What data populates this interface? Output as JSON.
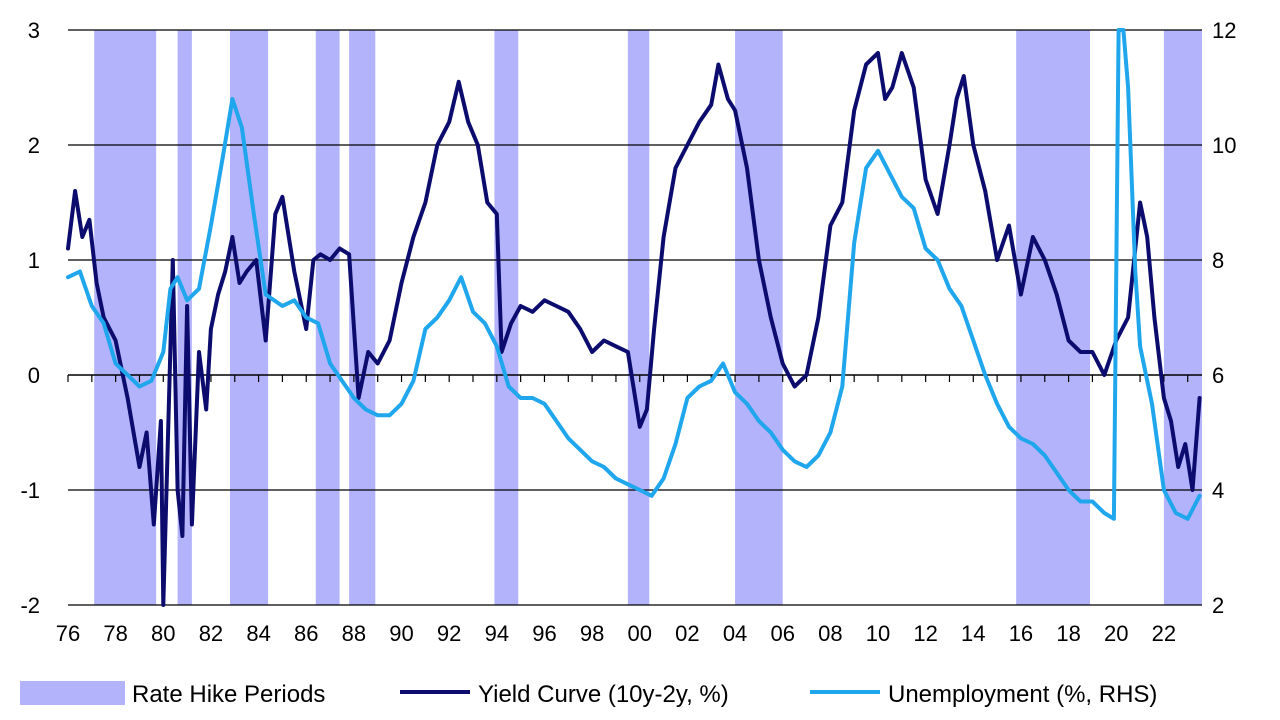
{
  "chart_data": {
    "type": "line",
    "title": "",
    "x_tick_labels": [
      "76",
      "78",
      "80",
      "82",
      "84",
      "86",
      "88",
      "90",
      "92",
      "94",
      "96",
      "98",
      "00",
      "02",
      "04",
      "06",
      "08",
      "10",
      "12",
      "14",
      "16",
      "18",
      "20",
      "22"
    ],
    "x_range": [
      1976,
      2023.6
    ],
    "y_left": {
      "range": [
        -2,
        3
      ],
      "ticks": [
        -2,
        -1,
        0,
        1,
        2,
        3
      ]
    },
    "y_right": {
      "range": [
        2,
        12
      ],
      "ticks": [
        2,
        4,
        6,
        8,
        10,
        12
      ]
    },
    "grid": "horizontal",
    "legend_position": "bottom",
    "colors": {
      "hike": "#b3b3fb",
      "yield": "#0c0c6e",
      "unemployment": "#1fa6ec"
    },
    "legend": {
      "hike": "Rate Hike Periods",
      "yield": "Yield Curve (10y-2y, %)",
      "unemployment": "Unemployment (%, RHS)"
    },
    "rate_hike_periods": [
      [
        1977.1,
        1979.7
      ],
      [
        1980.6,
        1981.2
      ],
      [
        1982.8,
        1984.4
      ],
      [
        1986.4,
        1987.4
      ],
      [
        1987.8,
        1988.9
      ],
      [
        1993.9,
        1994.9
      ],
      [
        1999.5,
        2000.4
      ],
      [
        2004.0,
        2006.0
      ],
      [
        2015.8,
        2018.9
      ],
      [
        2022.0,
        2023.6
      ]
    ],
    "series": [
      {
        "name": "Yield Curve (10y-2y, %)",
        "axis": "left",
        "x": [
          1976.0,
          1976.3,
          1976.6,
          1976.9,
          1977.2,
          1977.5,
          1978.0,
          1978.5,
          1979.0,
          1979.3,
          1979.6,
          1979.9,
          1980.0,
          1980.2,
          1980.4,
          1980.6,
          1980.8,
          1981.0,
          1981.2,
          1981.5,
          1981.8,
          1982.0,
          1982.3,
          1982.6,
          1982.9,
          1983.2,
          1983.5,
          1983.9,
          1984.3,
          1984.7,
          1985.0,
          1985.5,
          1986.0,
          1986.3,
          1986.6,
          1987.0,
          1987.4,
          1987.8,
          1988.2,
          1988.6,
          1989.0,
          1989.5,
          1990.0,
          1990.5,
          1991.0,
          1991.5,
          1992.0,
          1992.4,
          1992.8,
          1993.2,
          1993.6,
          1994.0,
          1994.2,
          1994.6,
          1995.0,
          1995.5,
          1996.0,
          1996.5,
          1997.0,
          1997.5,
          1998.0,
          1998.5,
          1999.0,
          1999.5,
          2000.0,
          2000.3,
          2000.6,
          2001.0,
          2001.5,
          2002.0,
          2002.5,
          2003.0,
          2003.3,
          2003.7,
          2004.0,
          2004.5,
          2005.0,
          2005.5,
          2006.0,
          2006.5,
          2007.0,
          2007.5,
          2008.0,
          2008.5,
          2009.0,
          2009.5,
          2010.0,
          2010.3,
          2010.6,
          2011.0,
          2011.5,
          2012.0,
          2012.5,
          2013.0,
          2013.3,
          2013.6,
          2014.0,
          2014.5,
          2015.0,
          2015.5,
          2016.0,
          2016.5,
          2017.0,
          2017.5,
          2018.0,
          2018.5,
          2019.0,
          2019.5,
          2020.0,
          2020.5,
          2021.0,
          2021.3,
          2021.6,
          2022.0,
          2022.3,
          2022.6,
          2022.9,
          2023.2,
          2023.5
        ],
        "y": [
          1.1,
          1.6,
          1.2,
          1.35,
          0.8,
          0.5,
          0.3,
          -0.2,
          -0.8,
          -0.5,
          -1.3,
          -0.4,
          -2.0,
          -0.5,
          1.0,
          -1.0,
          -1.4,
          0.6,
          -1.3,
          0.2,
          -0.3,
          0.4,
          0.7,
          0.9,
          1.2,
          0.8,
          0.9,
          1.0,
          0.3,
          1.4,
          1.55,
          0.9,
          0.4,
          1.0,
          1.05,
          1.0,
          1.1,
          1.05,
          -0.2,
          0.2,
          0.1,
          0.3,
          0.8,
          1.2,
          1.5,
          2.0,
          2.2,
          2.55,
          2.2,
          2.0,
          1.5,
          1.4,
          0.2,
          0.45,
          0.6,
          0.55,
          0.65,
          0.6,
          0.55,
          0.4,
          0.2,
          0.3,
          0.25,
          0.2,
          -0.45,
          -0.3,
          0.4,
          1.2,
          1.8,
          2.0,
          2.2,
          2.35,
          2.7,
          2.4,
          2.3,
          1.8,
          1.0,
          0.5,
          0.1,
          -0.1,
          0.0,
          0.5,
          1.3,
          1.5,
          2.3,
          2.7,
          2.8,
          2.4,
          2.5,
          2.8,
          2.5,
          1.7,
          1.4,
          2.0,
          2.4,
          2.6,
          2.0,
          1.6,
          1.0,
          1.3,
          0.7,
          1.2,
          1.0,
          0.7,
          0.3,
          0.2,
          0.2,
          0.0,
          0.3,
          0.5,
          1.5,
          1.2,
          0.5,
          -0.2,
          -0.4,
          -0.8,
          -0.6,
          -1.0,
          -0.2
        ]
      },
      {
        "name": "Unemployment (%, RHS)",
        "axis": "right",
        "x": [
          1976.0,
          1976.5,
          1977.0,
          1977.5,
          1978.0,
          1978.5,
          1979.0,
          1979.5,
          1980.0,
          1980.3,
          1980.6,
          1981.0,
          1981.5,
          1982.0,
          1982.5,
          1982.9,
          1983.3,
          1983.8,
          1984.3,
          1985.0,
          1985.5,
          1986.0,
          1986.5,
          1987.0,
          1987.5,
          1988.0,
          1988.5,
          1989.0,
          1989.5,
          1990.0,
          1990.5,
          1991.0,
          1991.5,
          1992.0,
          1992.5,
          1993.0,
          1993.5,
          1994.0,
          1994.5,
          1995.0,
          1995.5,
          1996.0,
          1996.5,
          1997.0,
          1997.5,
          1998.0,
          1998.5,
          1999.0,
          1999.5,
          2000.0,
          2000.5,
          2001.0,
          2001.5,
          2002.0,
          2002.5,
          2003.0,
          2003.5,
          2004.0,
          2004.5,
          2005.0,
          2005.5,
          2006.0,
          2006.5,
          2007.0,
          2007.5,
          2008.0,
          2008.5,
          2009.0,
          2009.5,
          2010.0,
          2010.5,
          2011.0,
          2011.5,
          2012.0,
          2012.5,
          2013.0,
          2013.5,
          2014.0,
          2014.5,
          2015.0,
          2015.5,
          2016.0,
          2016.5,
          2017.0,
          2017.5,
          2018.0,
          2018.5,
          2019.0,
          2019.5,
          2019.9,
          2020.1,
          2020.3,
          2020.5,
          2020.8,
          2021.0,
          2021.5,
          2022.0,
          2022.5,
          2023.0,
          2023.5
        ],
        "y": [
          7.7,
          7.8,
          7.2,
          6.9,
          6.2,
          6.0,
          5.8,
          5.9,
          6.4,
          7.5,
          7.7,
          7.3,
          7.5,
          8.6,
          9.8,
          10.8,
          10.3,
          8.8,
          7.4,
          7.2,
          7.3,
          7.0,
          6.9,
          6.2,
          5.9,
          5.6,
          5.4,
          5.3,
          5.3,
          5.5,
          5.9,
          6.8,
          7.0,
          7.3,
          7.7,
          7.1,
          6.9,
          6.5,
          5.8,
          5.6,
          5.6,
          5.5,
          5.2,
          4.9,
          4.7,
          4.5,
          4.4,
          4.2,
          4.1,
          4.0,
          3.9,
          4.2,
          4.8,
          5.6,
          5.8,
          5.9,
          6.2,
          5.7,
          5.5,
          5.2,
          5.0,
          4.7,
          4.5,
          4.4,
          4.6,
          5.0,
          5.8,
          8.3,
          9.6,
          9.9,
          9.5,
          9.1,
          8.9,
          8.2,
          8.0,
          7.5,
          7.2,
          6.6,
          6.0,
          5.5,
          5.1,
          4.9,
          4.8,
          4.6,
          4.3,
          4.0,
          3.8,
          3.8,
          3.6,
          3.5,
          12.0,
          13.0,
          11.0,
          7.8,
          6.5,
          5.5,
          4.0,
          3.6,
          3.5,
          3.9
        ]
      }
    ]
  }
}
